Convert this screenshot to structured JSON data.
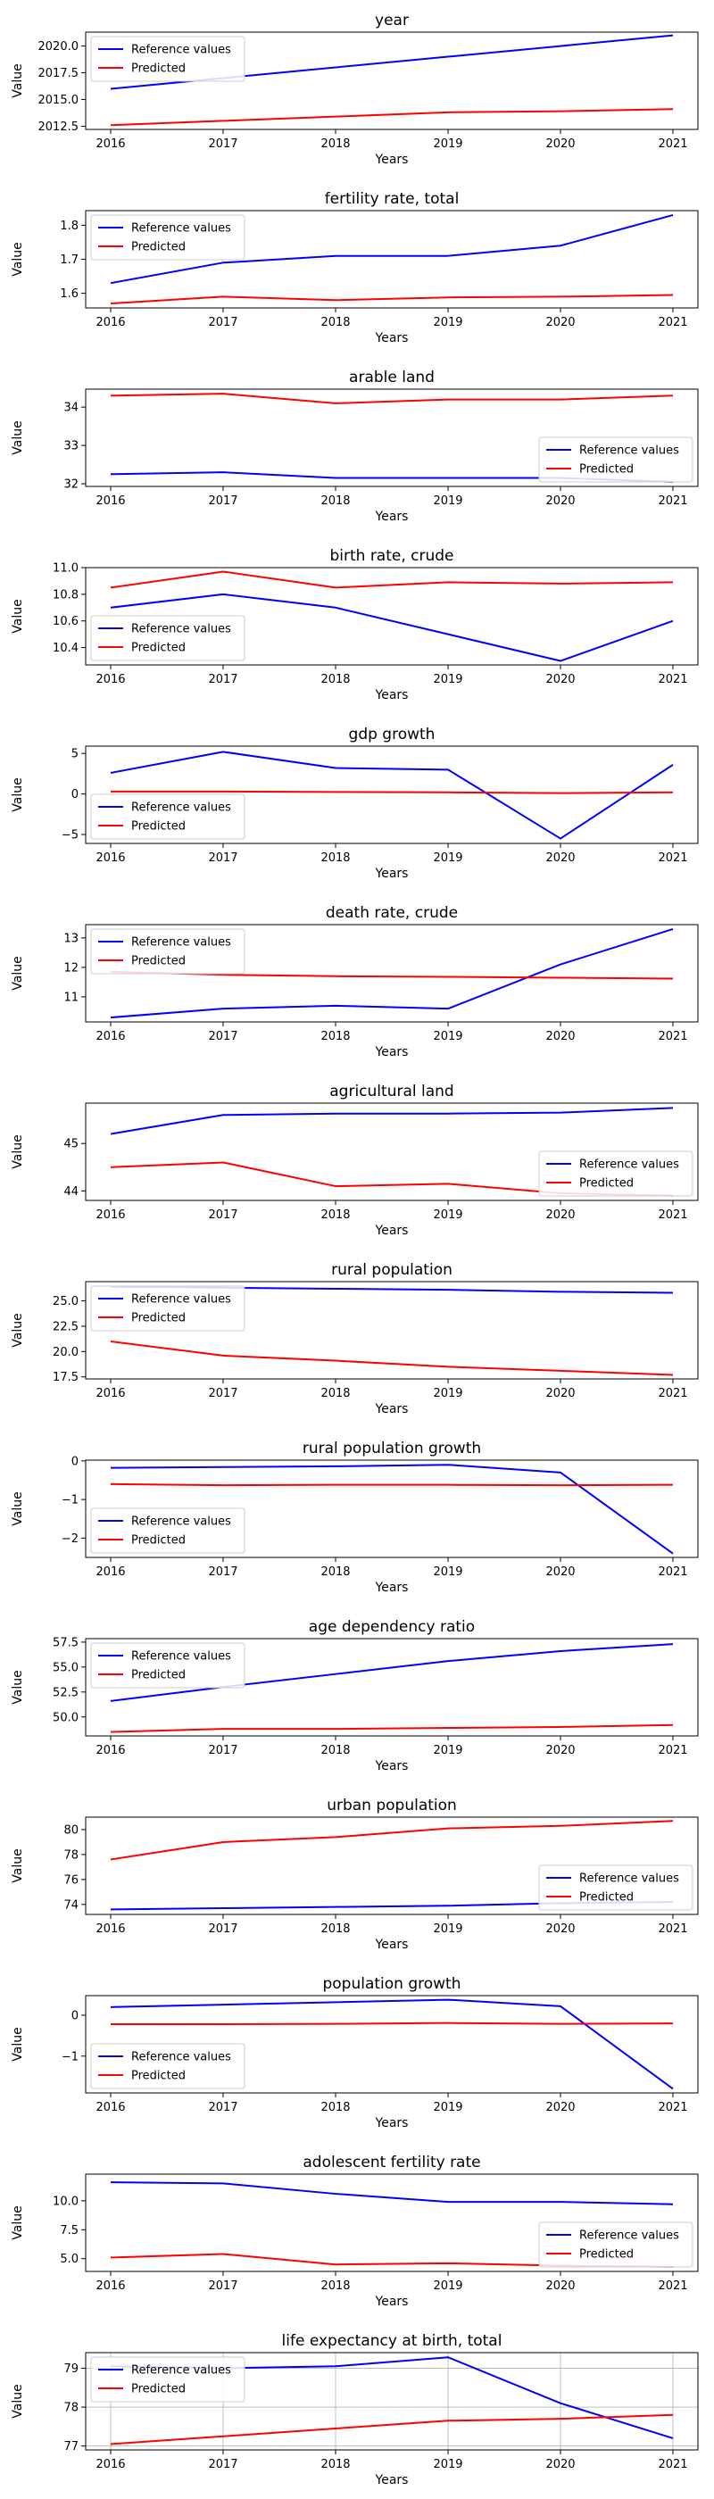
{
  "x_label": "Years",
  "y_label": "Value",
  "legend": {
    "reference": "Reference values",
    "predicted": "Predicted"
  },
  "colors": {
    "reference": "#0000ff",
    "predicted": "#ff0000",
    "frame": "#000000",
    "grid": "#b0b0b0",
    "legend_border": "#cccccc"
  },
  "chart_data": [
    {
      "type": "line",
      "title": "year",
      "xlabel": "Years",
      "ylabel": "Value",
      "x": [
        2016,
        2017,
        2018,
        2019,
        2020,
        2021
      ],
      "ylim": [
        2012.2,
        2021.3
      ],
      "yticks": [
        2012.5,
        2015.0,
        2017.5,
        2020.0
      ],
      "ytick_labels": [
        "2012.5",
        "2015.0",
        "2017.5",
        "2020.0"
      ],
      "legend_position": "upper-left",
      "grid": false,
      "series": [
        {
          "name": "Reference values",
          "key": "reference",
          "values": [
            2016,
            2017,
            2018,
            2019,
            2020,
            2021
          ]
        },
        {
          "name": "Predicted",
          "key": "predicted",
          "values": [
            2012.6,
            2013.0,
            2013.4,
            2013.8,
            2013.9,
            2014.1
          ]
        }
      ]
    },
    {
      "type": "line",
      "title": "fertility rate, total",
      "xlabel": "Years",
      "ylabel": "Value",
      "x": [
        2016,
        2017,
        2018,
        2019,
        2020,
        2021
      ],
      "ylim": [
        1.557,
        1.843
      ],
      "yticks": [
        1.6,
        1.7,
        1.8
      ],
      "ytick_labels": [
        "1.6",
        "1.7",
        "1.8"
      ],
      "legend_position": "upper-left",
      "grid": false,
      "series": [
        {
          "name": "Reference values",
          "key": "reference",
          "values": [
            1.63,
            1.69,
            1.71,
            1.71,
            1.74,
            1.83
          ]
        },
        {
          "name": "Predicted",
          "key": "predicted",
          "values": [
            1.57,
            1.59,
            1.58,
            1.588,
            1.59,
            1.595
          ]
        }
      ]
    },
    {
      "type": "line",
      "title": "arable land",
      "xlabel": "Years",
      "ylabel": "Value",
      "x": [
        2016,
        2017,
        2018,
        2019,
        2020,
        2021
      ],
      "ylim": [
        31.93,
        34.47
      ],
      "yticks": [
        32,
        33,
        34
      ],
      "ytick_labels": [
        "32",
        "33",
        "34"
      ],
      "legend_position": "lower-right",
      "grid": false,
      "series": [
        {
          "name": "Reference values",
          "key": "reference",
          "values": [
            32.25,
            32.3,
            32.15,
            32.15,
            32.15,
            32.05
          ]
        },
        {
          "name": "Predicted",
          "key": "predicted",
          "values": [
            34.3,
            34.35,
            34.1,
            34.2,
            34.2,
            34.3
          ]
        }
      ]
    },
    {
      "type": "line",
      "title": "birth rate, crude",
      "xlabel": "Years",
      "ylabel": "Value",
      "x": [
        2016,
        2017,
        2018,
        2019,
        2020,
        2021
      ],
      "ylim": [
        10.27,
        11.0
      ],
      "yticks": [
        10.4,
        10.6,
        10.8,
        11.0
      ],
      "ytick_labels": [
        "10.4",
        "10.6",
        "10.8",
        "11.0"
      ],
      "legend_position": "lower-left",
      "grid": false,
      "series": [
        {
          "name": "Reference values",
          "key": "reference",
          "values": [
            10.7,
            10.8,
            10.7,
            10.5,
            10.3,
            10.6
          ]
        },
        {
          "name": "Predicted",
          "key": "predicted",
          "values": [
            10.85,
            10.97,
            10.85,
            10.89,
            10.88,
            10.89
          ]
        }
      ]
    },
    {
      "type": "line",
      "title": "gdp growth",
      "xlabel": "Years",
      "ylabel": "Value",
      "x": [
        2016,
        2017,
        2018,
        2019,
        2020,
        2021
      ],
      "ylim": [
        -6.1,
        5.9
      ],
      "yticks": [
        -5,
        0,
        5
      ],
      "ytick_labels": [
        "−5",
        "0",
        "5"
      ],
      "legend_position": "lower-left",
      "grid": false,
      "series": [
        {
          "name": "Reference values",
          "key": "reference",
          "values": [
            2.6,
            5.2,
            3.2,
            3.0,
            -5.5,
            3.6
          ]
        },
        {
          "name": "Predicted",
          "key": "predicted",
          "values": [
            0.3,
            0.3,
            0.25,
            0.2,
            0.1,
            0.2
          ]
        }
      ]
    },
    {
      "type": "line",
      "title": "death rate, crude",
      "xlabel": "Years",
      "ylabel": "Value",
      "x": [
        2016,
        2017,
        2018,
        2019,
        2020,
        2021
      ],
      "ylim": [
        10.15,
        13.45
      ],
      "yticks": [
        11,
        12,
        13
      ],
      "ytick_labels": [
        "11",
        "12",
        "13"
      ],
      "legend_position": "upper-left",
      "grid": false,
      "series": [
        {
          "name": "Reference values",
          "key": "reference",
          "values": [
            10.3,
            10.6,
            10.7,
            10.6,
            12.1,
            13.3
          ]
        },
        {
          "name": "Predicted",
          "key": "predicted",
          "values": [
            11.85,
            11.75,
            11.7,
            11.68,
            11.65,
            11.62
          ]
        }
      ]
    },
    {
      "type": "line",
      "title": "agricultural land",
      "xlabel": "Years",
      "ylabel": "Value",
      "x": [
        2016,
        2017,
        2018,
        2019,
        2020,
        2021
      ],
      "ylim": [
        43.8,
        45.85
      ],
      "yticks": [
        44,
        45
      ],
      "ytick_labels": [
        "44",
        "45"
      ],
      "legend_position": "lower-right",
      "grid": false,
      "series": [
        {
          "name": "Reference values",
          "key": "reference",
          "values": [
            45.2,
            45.6,
            45.63,
            45.63,
            45.65,
            45.75
          ]
        },
        {
          "name": "Predicted",
          "key": "predicted",
          "values": [
            44.5,
            44.6,
            44.1,
            44.15,
            43.95,
            43.9
          ]
        }
      ]
    },
    {
      "type": "line",
      "title": "rural population",
      "xlabel": "Years",
      "ylabel": "Value",
      "x": [
        2016,
        2017,
        2018,
        2019,
        2020,
        2021
      ],
      "ylim": [
        17.3,
        26.9
      ],
      "yticks": [
        17.5,
        20.0,
        22.5,
        25.0
      ],
      "ytick_labels": [
        "17.5",
        "20.0",
        "22.5",
        "25.0"
      ],
      "legend_position": "upper-left",
      "grid": false,
      "series": [
        {
          "name": "Reference values",
          "key": "reference",
          "values": [
            26.4,
            26.3,
            26.2,
            26.1,
            25.9,
            25.8
          ]
        },
        {
          "name": "Predicted",
          "key": "predicted",
          "values": [
            21.0,
            19.6,
            19.1,
            18.5,
            18.1,
            17.7
          ]
        }
      ]
    },
    {
      "type": "line",
      "title": "rural population growth",
      "xlabel": "Years",
      "ylabel": "Value",
      "x": [
        2016,
        2017,
        2018,
        2019,
        2020,
        2021
      ],
      "ylim": [
        -2.5,
        0.02
      ],
      "yticks": [
        -2,
        -1,
        0
      ],
      "ytick_labels": [
        "−2",
        "−1",
        "0"
      ],
      "legend_position": "lower-left",
      "grid": false,
      "series": [
        {
          "name": "Reference values",
          "key": "reference",
          "values": [
            -0.18,
            -0.16,
            -0.14,
            -0.1,
            -0.3,
            -2.4
          ]
        },
        {
          "name": "Predicted",
          "key": "predicted",
          "values": [
            -0.6,
            -0.63,
            -0.62,
            -0.62,
            -0.63,
            -0.62
          ]
        }
      ]
    },
    {
      "type": "line",
      "title": "age dependency ratio",
      "xlabel": "Years",
      "ylabel": "Value",
      "x": [
        2016,
        2017,
        2018,
        2019,
        2020,
        2021
      ],
      "ylim": [
        48.1,
        57.85
      ],
      "yticks": [
        50.0,
        52.5,
        55.0,
        57.5
      ],
      "ytick_labels": [
        "50.0",
        "52.5",
        "55.0",
        "57.5"
      ],
      "legend_position": "upper-left",
      "grid": false,
      "series": [
        {
          "name": "Reference values",
          "key": "reference",
          "values": [
            51.6,
            53.0,
            54.3,
            55.6,
            56.6,
            57.3
          ]
        },
        {
          "name": "Predicted",
          "key": "predicted",
          "values": [
            48.5,
            48.8,
            48.8,
            48.9,
            49.0,
            49.2
          ]
        }
      ]
    },
    {
      "type": "line",
      "title": "urban population",
      "xlabel": "Years",
      "ylabel": "Value",
      "x": [
        2016,
        2017,
        2018,
        2019,
        2020,
        2021
      ],
      "ylim": [
        73.2,
        81.0
      ],
      "yticks": [
        74,
        76,
        78,
        80
      ],
      "ytick_labels": [
        "74",
        "76",
        "78",
        "80"
      ],
      "legend_position": "lower-right",
      "grid": false,
      "series": [
        {
          "name": "Reference values",
          "key": "reference",
          "values": [
            73.6,
            73.7,
            73.8,
            73.9,
            74.1,
            74.2
          ]
        },
        {
          "name": "Predicted",
          "key": "predicted",
          "values": [
            77.6,
            79.0,
            79.4,
            80.1,
            80.3,
            80.7
          ]
        }
      ]
    },
    {
      "type": "line",
      "title": "population growth",
      "xlabel": "Years",
      "ylabel": "Value",
      "x": [
        2016,
        2017,
        2018,
        2019,
        2020,
        2021
      ],
      "ylim": [
        -1.9,
        0.48
      ],
      "yticks": [
        -1,
        0
      ],
      "ytick_labels": [
        "−1",
        "0"
      ],
      "legend_position": "lower-left",
      "grid": false,
      "series": [
        {
          "name": "Reference values",
          "key": "reference",
          "values": [
            0.2,
            0.26,
            0.32,
            0.38,
            0.22,
            -1.8
          ]
        },
        {
          "name": "Predicted",
          "key": "predicted",
          "values": [
            -0.22,
            -0.22,
            -0.21,
            -0.19,
            -0.21,
            -0.2
          ]
        }
      ]
    },
    {
      "type": "line",
      "title": "adolescent fertility rate",
      "xlabel": "Years",
      "ylabel": "Value",
      "x": [
        2016,
        2017,
        2018,
        2019,
        2020,
        2021
      ],
      "ylim": [
        3.9,
        12.3
      ],
      "yticks": [
        5.0,
        7.5,
        10.0
      ],
      "ytick_labels": [
        "5.0",
        "7.5",
        "10.0"
      ],
      "legend_position": "lower-right",
      "grid": false,
      "series": [
        {
          "name": "Reference values",
          "key": "reference",
          "values": [
            11.6,
            11.5,
            10.6,
            9.9,
            9.9,
            9.7
          ]
        },
        {
          "name": "Predicted",
          "key": "predicted",
          "values": [
            5.1,
            5.4,
            4.5,
            4.6,
            4.4,
            4.3
          ]
        }
      ]
    },
    {
      "type": "line",
      "title": "life expectancy at birth, total",
      "xlabel": "Years",
      "ylabel": "Value",
      "x": [
        2016,
        2017,
        2018,
        2019,
        2020,
        2021
      ],
      "ylim": [
        76.9,
        79.4
      ],
      "yticks": [
        77,
        78,
        79
      ],
      "ytick_labels": [
        "77",
        "78",
        "79"
      ],
      "legend_position": "upper-left",
      "grid": true,
      "series": [
        {
          "name": "Reference values",
          "key": "reference",
          "values": [
            79.05,
            79.0,
            79.05,
            79.28,
            78.1,
            77.2
          ]
        },
        {
          "name": "Predicted",
          "key": "predicted",
          "values": [
            77.05,
            77.25,
            77.45,
            77.65,
            77.7,
            77.8
          ]
        }
      ]
    }
  ]
}
